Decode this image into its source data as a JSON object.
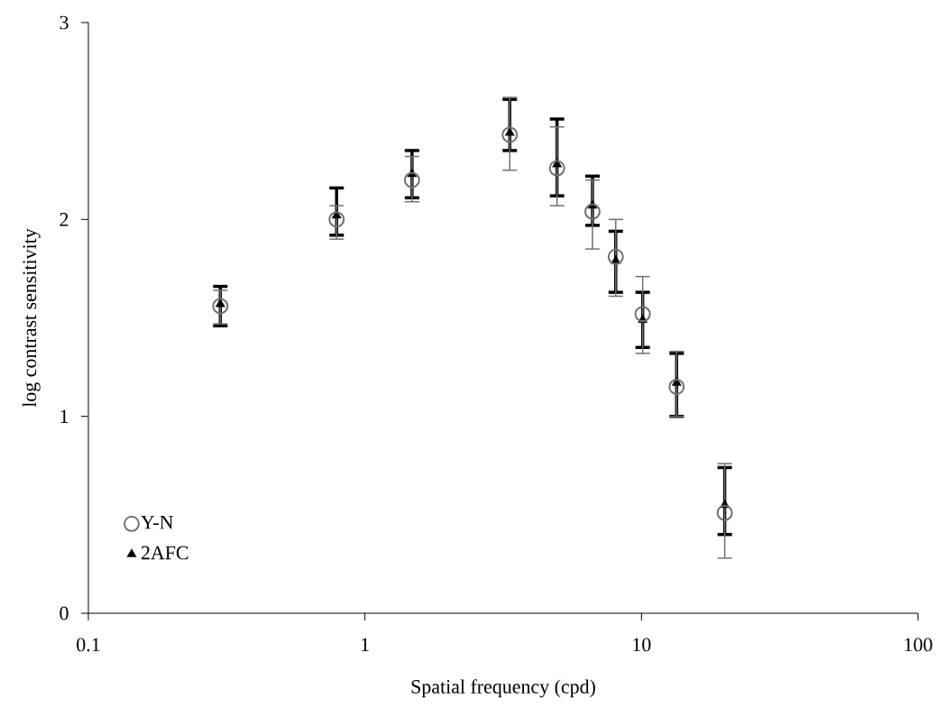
{
  "chart_data": {
    "type": "scatter",
    "xlabel": "Spatial frequency (cpd)",
    "ylabel": "log contrast sensitivity",
    "x": [
      0.3,
      0.79,
      1.48,
      3.34,
      4.95,
      6.65,
      8.07,
      10.1,
      13.4,
      20.0
    ],
    "series": [
      {
        "name": "Y-N",
        "color": "#707070",
        "marker": "circle",
        "values": [
          1.56,
          2.0,
          2.2,
          2.43,
          2.26,
          2.04,
          1.81,
          1.52,
          1.15,
          0.51
        ],
        "errors": [
          [
            1.47,
            1.64
          ],
          [
            1.9,
            2.07
          ],
          [
            2.09,
            2.32
          ],
          [
            2.25,
            2.62
          ],
          [
            2.07,
            2.47
          ],
          [
            1.85,
            2.2
          ],
          [
            1.61,
            2.0
          ],
          [
            1.32,
            1.71
          ],
          [
            1.0,
            1.33
          ],
          [
            0.28,
            0.76
          ]
        ]
      },
      {
        "name": "2AFC",
        "color": "#000000",
        "marker": "triangle",
        "values": [
          1.57,
          2.02,
          2.23,
          2.44,
          2.28,
          2.07,
          1.79,
          1.49,
          1.17,
          0.55
        ],
        "errors": [
          [
            1.46,
            1.66
          ],
          [
            1.92,
            2.16
          ],
          [
            2.11,
            2.35
          ],
          [
            2.35,
            2.61
          ],
          [
            2.12,
            2.51
          ],
          [
            1.97,
            2.22
          ],
          [
            1.63,
            1.94
          ],
          [
            1.35,
            1.63
          ],
          [
            1.0,
            1.32
          ],
          [
            0.4,
            0.74
          ]
        ]
      }
    ],
    "log": "x",
    "xlim": [
      0.1,
      100
    ],
    "xticks": [
      0.1,
      1,
      10,
      100
    ],
    "ylim": [
      0,
      3
    ],
    "yticks": [
      0,
      1,
      2,
      3
    ],
    "grid": false,
    "legend": "bottom left",
    "line_style": "none"
  }
}
